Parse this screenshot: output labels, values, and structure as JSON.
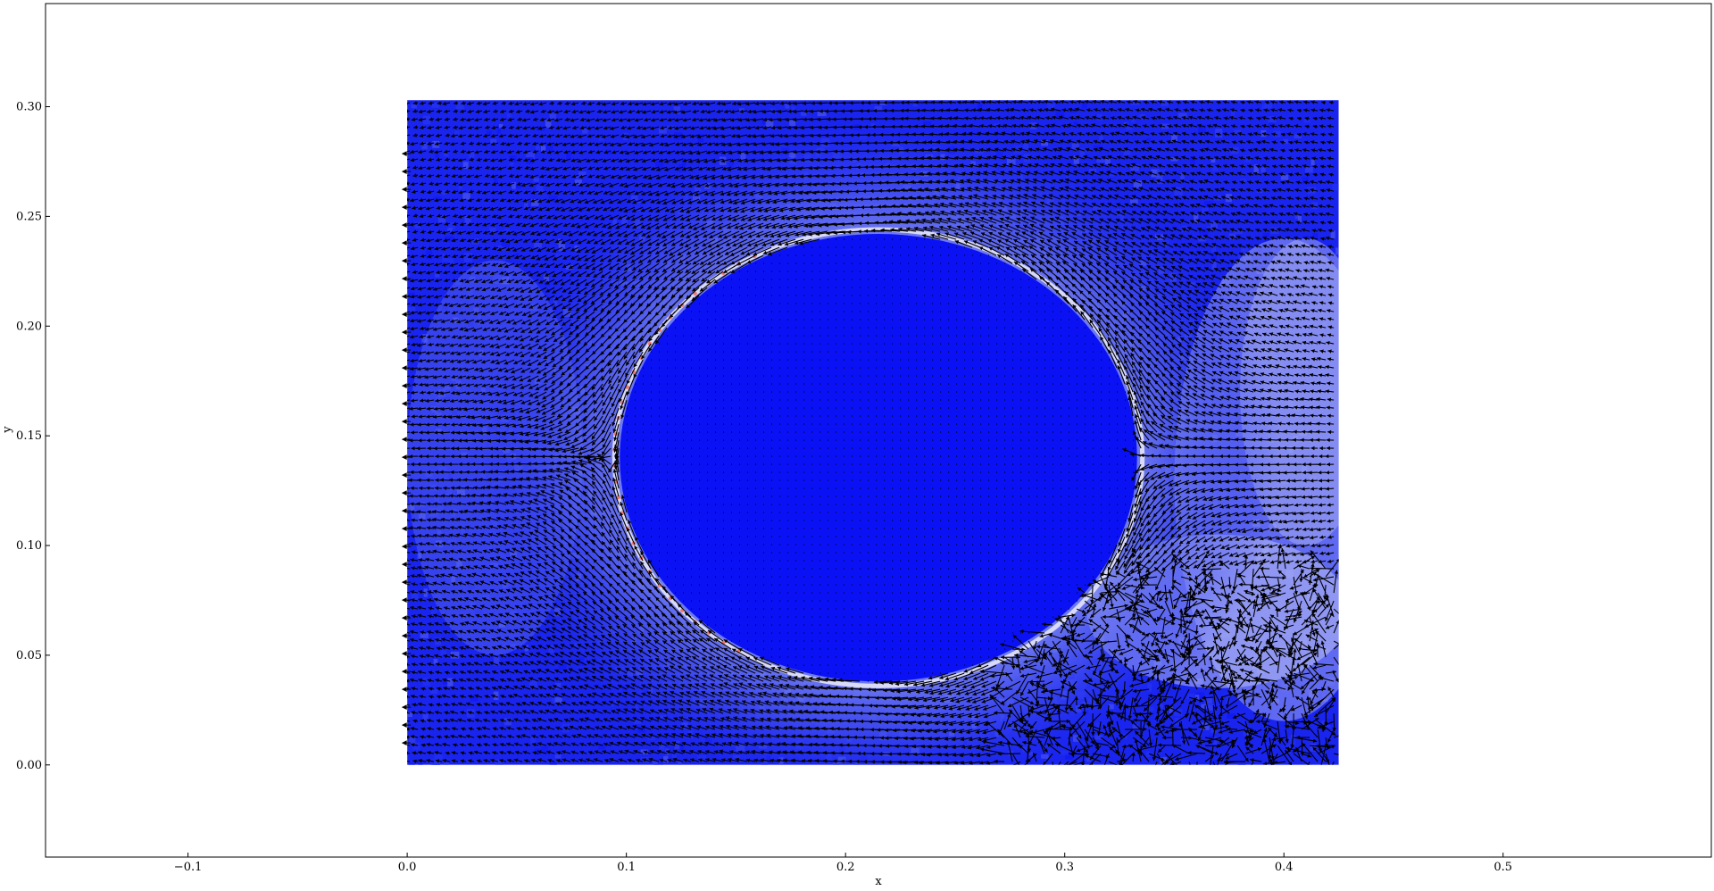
{
  "chart_data": {
    "type": "quiver",
    "title": "",
    "xlabel": "x",
    "ylabel": "y",
    "xlim": [
      -0.165,
      0.595
    ],
    "ylim": [
      -0.042,
      0.347
    ],
    "x_ticks": [
      -0.1,
      0.0,
      0.1,
      0.2,
      0.3,
      0.4,
      0.5
    ],
    "x_tick_labels": [
      "−0.1",
      "0.0",
      "0.1",
      "0.2",
      "0.3",
      "0.4",
      "0.5"
    ],
    "y_ticks": [
      0.0,
      0.05,
      0.1,
      0.15,
      0.2,
      0.25,
      0.3
    ],
    "y_tick_labels": [
      "0.00",
      "0.05",
      "0.10",
      "0.15",
      "0.20",
      "0.25",
      "0.30"
    ],
    "grid": false,
    "domain_extent": {
      "x": [
        0.0,
        0.425
      ],
      "y": [
        0.0,
        0.303
      ]
    },
    "obstacle": {
      "center": [
        0.215,
        0.14
      ],
      "radius_x": 0.118,
      "radius_y": 0.102
    },
    "field_colormap": {
      "low": "#0a12f5",
      "mid": "#c8cdf5",
      "high": "#f06a5a"
    },
    "arrow_color": "#000000"
  }
}
